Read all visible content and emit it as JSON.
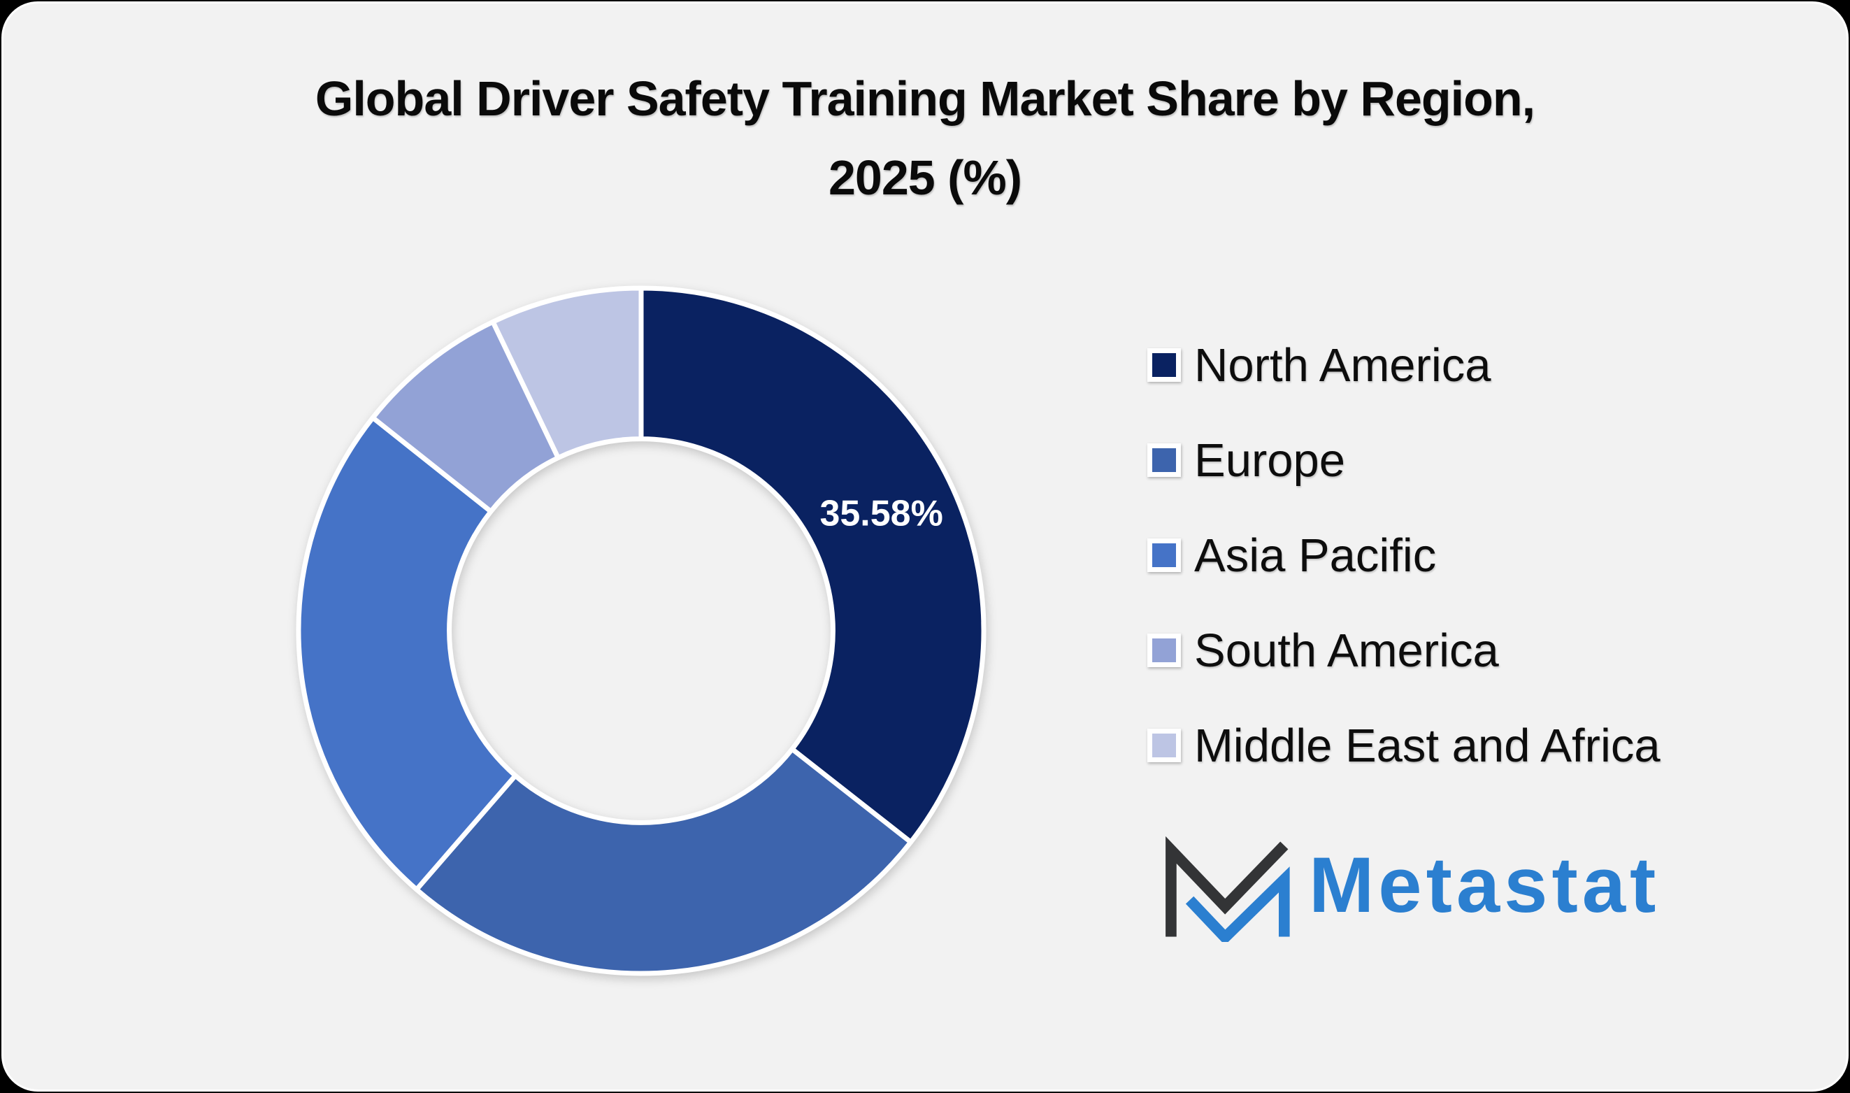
{
  "page": {
    "background_color": "#000000",
    "card_background_color": "#f2f2f2"
  },
  "title": {
    "line1": "Global Driver Safety Training Market Share by Region,",
    "line2": "2025 (%)"
  },
  "chart_data": {
    "type": "pie",
    "subtype": "donut",
    "title": "Global Driver Safety Training Market Share by Region, 2025 (%)",
    "categories": [
      "North America",
      "Europe",
      "Asia Pacific",
      "South America",
      "Middle East and Africa"
    ],
    "values": [
      35.58,
      25.8,
      24.3,
      7.2,
      7.12
    ],
    "unit": "%",
    "colors": [
      "#0a2261",
      "#3d64ad",
      "#4573c7",
      "#92a2d6",
      "#bdc5e4"
    ],
    "data_labels": [
      "35.58%",
      "",
      "",
      "",
      ""
    ],
    "data_label_color": "#ffffff",
    "start_angle_deg": 0,
    "direction": "clockwise",
    "donut_hole_ratio": 0.56,
    "separator_color": "#ffffff",
    "legend_position": "right",
    "grid": false
  },
  "watermark": {
    "text": "Metastat",
    "text_color": "#2b7fd0",
    "mark_dark_color": "#333436",
    "mark_blue_color": "#2b7fd0"
  }
}
